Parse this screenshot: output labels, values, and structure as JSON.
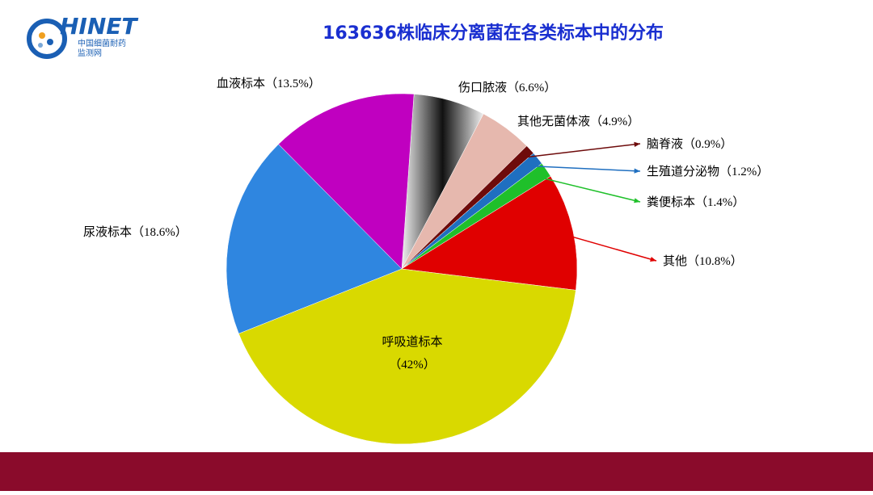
{
  "logo": {
    "name": "HINET",
    "line1": "中国细菌耐药",
    "line2": "监测网"
  },
  "chart_data": {
    "type": "pie",
    "title": "163636株临床分离菌在各类标本中的分布",
    "categories": [
      "伤口脓液",
      "其他无菌体液",
      "脑脊液",
      "生殖道分泌物",
      "粪便标本",
      "其他",
      "呼吸道标本",
      "尿液标本",
      "血液标本"
    ],
    "values": [
      6.6,
      4.9,
      0.9,
      1.2,
      1.4,
      10.8,
      42,
      18.6,
      13.5
    ],
    "value_labels": [
      "（6.6%）",
      "（4.9%）",
      "（0.9%）",
      "（1.2%）",
      "（1.4%）",
      "（10.8%）",
      "（42%）",
      "（18.6%）",
      "（13.5%）"
    ],
    "colors": [
      "#c9c9c9",
      "#e6b8ae",
      "#6e0b0b",
      "#1f6fc0",
      "#1fc02a",
      "#e00000",
      "#d9d900",
      "#2f86e0",
      "#c000c0"
    ]
  }
}
